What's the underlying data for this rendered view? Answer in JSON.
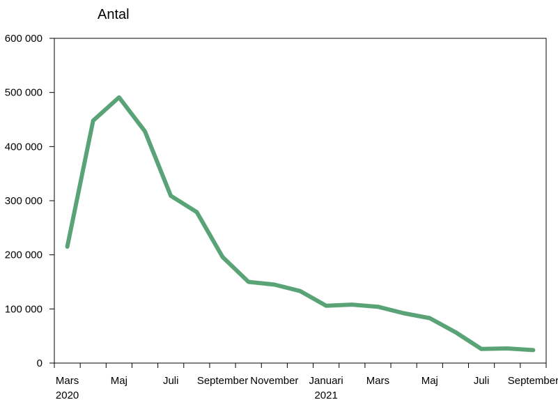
{
  "chart_data": {
    "type": "line",
    "unit_label": "Antal",
    "x": [
      "2020-03",
      "2020-04",
      "2020-05",
      "2020-06",
      "2020-07",
      "2020-08",
      "2020-09",
      "2020-10",
      "2020-11",
      "2020-12",
      "2021-01",
      "2021-02",
      "2021-03",
      "2021-04",
      "2021-05",
      "2021-06",
      "2021-07",
      "2021-08",
      "2021-09"
    ],
    "series": [
      {
        "values": [
          215000,
          448000,
          491000,
          428000,
          309000,
          279000,
          196000,
          150000,
          145000,
          133000,
          106000,
          108000,
          104000,
          92000,
          83000,
          57000,
          26000,
          27000,
          24000
        ]
      }
    ],
    "x_tick_labels": [
      {
        "label": "Mars",
        "year": "2020",
        "index": 0
      },
      {
        "label": "Maj",
        "year": "",
        "index": 2
      },
      {
        "label": "Juli",
        "year": "",
        "index": 4
      },
      {
        "label": "September",
        "year": "",
        "index": 6
      },
      {
        "label": "November",
        "year": "",
        "index": 8
      },
      {
        "label": "Januari",
        "year": "2021",
        "index": 10
      },
      {
        "label": "Mars",
        "year": "",
        "index": 12
      },
      {
        "label": "Maj",
        "year": "",
        "index": 14
      },
      {
        "label": "Juli",
        "year": "",
        "index": 16
      },
      {
        "label": "September",
        "year": "",
        "index": 18
      }
    ],
    "y_ticks": [
      0,
      100000,
      200000,
      300000,
      400000,
      500000,
      600000
    ],
    "y_tick_labels": [
      "0",
      "100 000",
      "200 000",
      "300 000",
      "400 000",
      "500 000",
      "600 000"
    ],
    "ylim": [
      0,
      600000
    ],
    "grid": false,
    "line_color": "#5aa377"
  }
}
